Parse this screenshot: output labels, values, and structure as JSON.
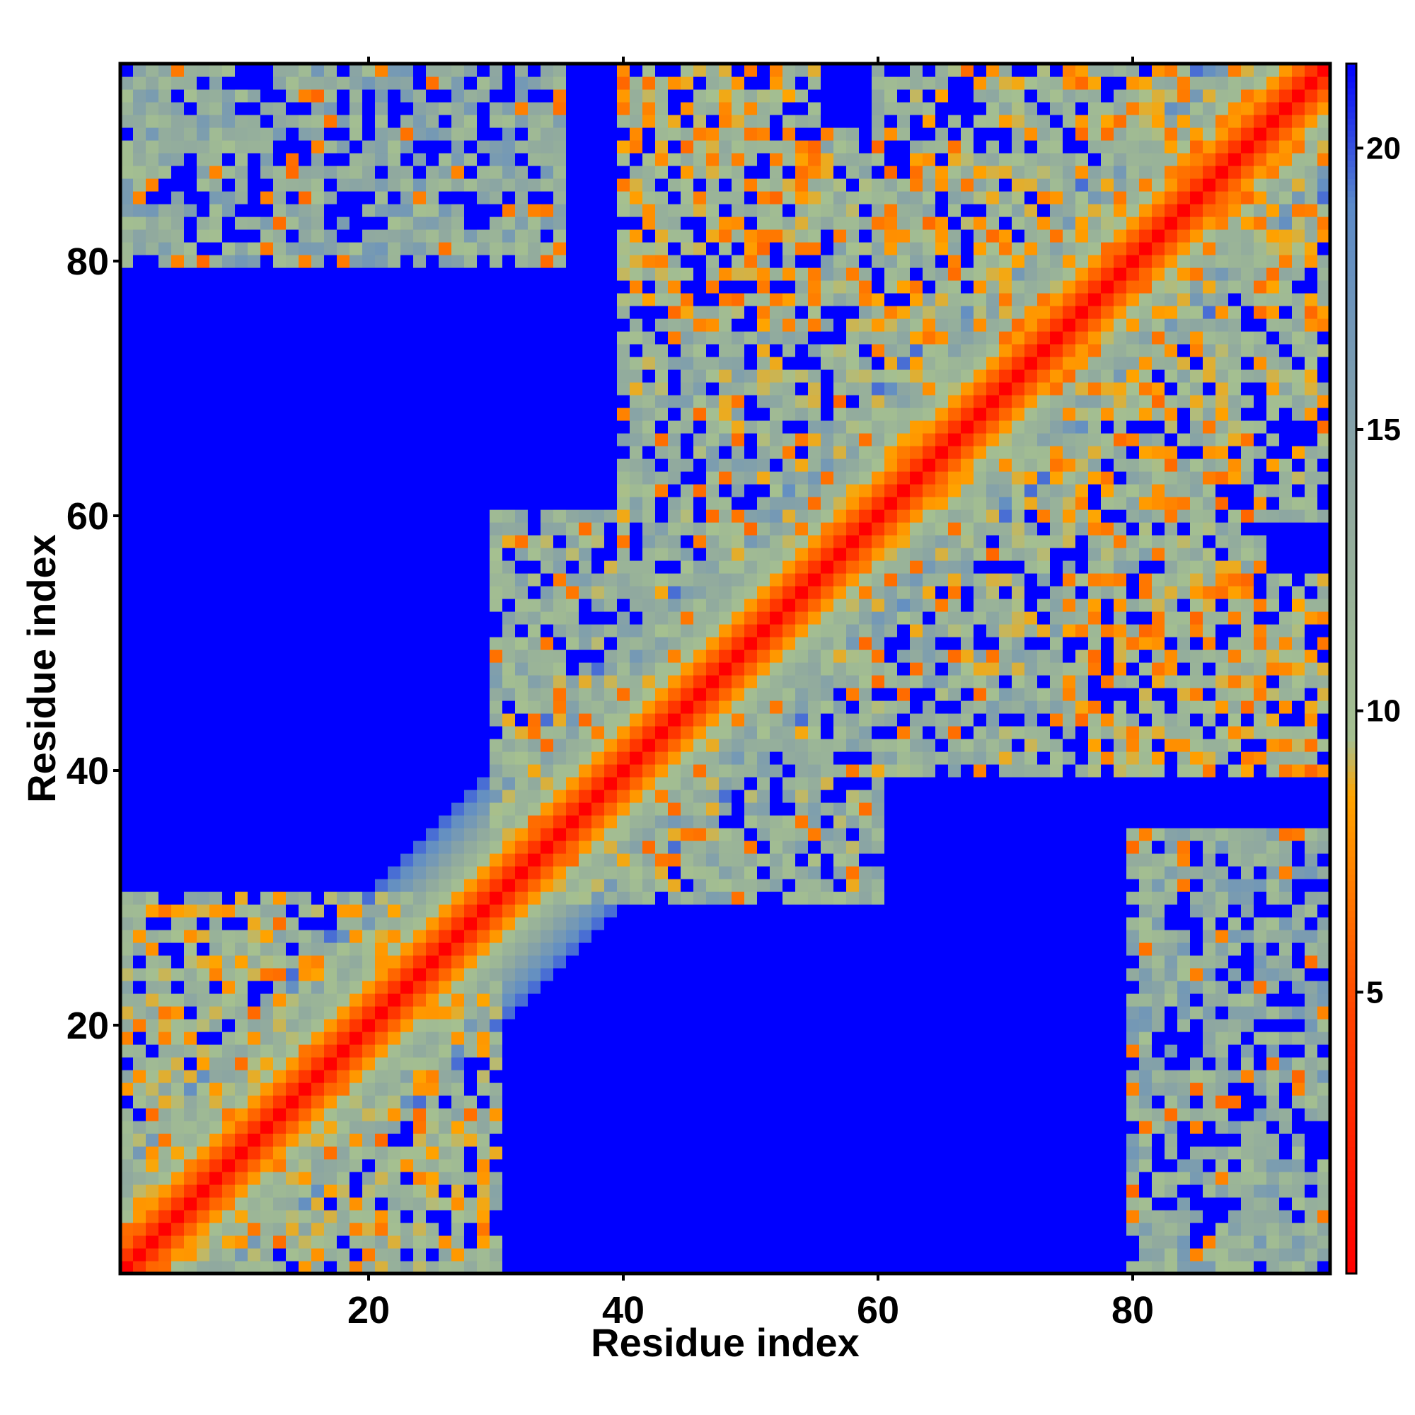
{
  "chart_data": {
    "type": "heatmap",
    "title": "",
    "xlabel": "Residue index",
    "ylabel": "Residue index",
    "n_residues": 95,
    "xlim": [
      0.5,
      95.5
    ],
    "ylim": [
      0.5,
      95.5
    ],
    "x_ticks": [
      20,
      40,
      60,
      80
    ],
    "y_ticks": [
      20,
      40,
      60,
      80
    ],
    "x_tick_labels": [
      "20",
      "40",
      "60",
      "80"
    ],
    "y_tick_labels": [
      "20",
      "40",
      "60",
      "80"
    ],
    "colorbar": {
      "range": [
        0,
        21.5
      ],
      "ticks": [
        5,
        10,
        15,
        20
      ],
      "tick_labels": [
        "5",
        "10",
        "15",
        "20"
      ],
      "stops": [
        {
          "value": 0,
          "color": "#ff0000"
        },
        {
          "value": 4.5,
          "color": "#ff4000"
        },
        {
          "value": 8.5,
          "color": "#ffa500"
        },
        {
          "value": 9.5,
          "color": "#a5c090"
        },
        {
          "value": 14,
          "color": "#8fa8a0"
        },
        {
          "value": 19,
          "color": "#5b8ac9"
        },
        {
          "value": 21.5,
          "color": "#0000ff"
        }
      ]
    },
    "values_description": "Symmetric residue-residue distance map; values read from colour: diagonal ≈0 (red), near-diagonal bands 3–8 (orange), mid-range 9–19 (green-grey to steel-blue), far contacts ≥21 (saturated blue).",
    "row_values": [],
    "diagonal_band": [
      {
        "offset": 0,
        "value": 0
      },
      {
        "offset": 1,
        "value": 3.8
      },
      {
        "offset": 2,
        "value": 6
      },
      {
        "offset": 3,
        "value": 8
      },
      {
        "offset": 4,
        "value": 10
      },
      {
        "offset": 5,
        "value": 12
      },
      {
        "offset": 6,
        "value": 13.5
      },
      {
        "offset": 7,
        "value": 15
      },
      {
        "offset": 8,
        "value": 16.5
      },
      {
        "offset": 9,
        "value": 18
      },
      {
        "offset": 10,
        "value": 19.5
      }
    ],
    "far_value": 21.5,
    "contact_regions": [
      {
        "i_range": [
          1,
          30
        ],
        "j_range": [
          1,
          30
        ],
        "value": 12
      },
      {
        "i_range": [
          30,
          60
        ],
        "j_range": [
          30,
          60
        ],
        "value": 13
      },
      {
        "i_range": [
          60,
          95
        ],
        "j_range": [
          60,
          95
        ],
        "value": 12
      },
      {
        "i_range": [
          40,
          55
        ],
        "j_range": [
          75,
          95
        ],
        "value": 11
      },
      {
        "i_range": [
          1,
          35
        ],
        "j_range": [
          80,
          95
        ],
        "value": 14
      },
      {
        "i_range": [
          45,
          75
        ],
        "j_range": [
          75,
          90
        ],
        "value": 13
      },
      {
        "i_range": [
          40,
          60
        ],
        "j_range": [
          60,
          75
        ],
        "value": 13
      },
      {
        "i_range": [
          60,
          95
        ],
        "j_range": [
          40,
          55
        ],
        "value": 14
      }
    ]
  }
}
